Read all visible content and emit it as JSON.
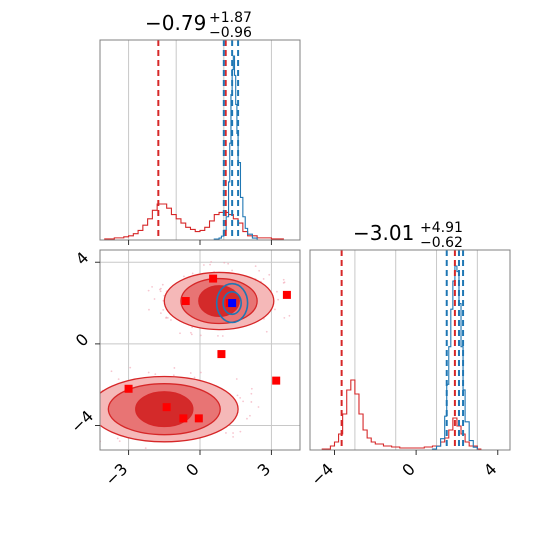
{
  "colors": {
    "red": "#d62728",
    "red_fill_dark": "#d42a2a",
    "red_fill_mid": "#e87474",
    "red_fill_light": "#f5b8b8",
    "blue": "#1f77b4",
    "marker_red": "#ff0000",
    "marker_blue": "#0000ff",
    "grid": "#c8c8c8"
  },
  "chart_data": [
    {
      "type": "histogram",
      "panel": "top-left",
      "title": {
        "main": "−0.79",
        "sup": "+1.87",
        "sub": "−0.96"
      },
      "xlim": [
        -4.2,
        4.2
      ],
      "grid": true,
      "quantile_lines": {
        "red": [
          -1.75,
          1.08
        ],
        "blue": [
          1.0,
          1.35,
          1.6
        ]
      },
      "series": [
        {
          "color": "red",
          "x": [
            -4.0,
            -3.6,
            -3.2,
            -3.0,
            -2.8,
            -2.6,
            -2.4,
            -2.2,
            -2.0,
            -1.8,
            -1.6,
            -1.4,
            -1.2,
            -1.0,
            -0.8,
            -0.6,
            -0.4,
            -0.2,
            0.0,
            0.2,
            0.4,
            0.6,
            0.8,
            1.0,
            1.2,
            1.4,
            1.6,
            1.8,
            2.0,
            2.4,
            3.0,
            3.5
          ],
          "y": [
            0.005,
            0.01,
            0.015,
            0.02,
            0.03,
            0.045,
            0.07,
            0.1,
            0.14,
            0.17,
            0.17,
            0.15,
            0.12,
            0.1,
            0.08,
            0.06,
            0.05,
            0.04,
            0.045,
            0.06,
            0.09,
            0.12,
            0.13,
            0.13,
            0.12,
            0.1,
            0.08,
            0.04,
            0.02,
            0.01,
            0.005,
            0.0
          ]
        },
        {
          "color": "blue",
          "x": [
            0.6,
            0.8,
            0.9,
            1.0,
            1.1,
            1.2,
            1.25,
            1.3,
            1.35,
            1.4,
            1.45,
            1.5,
            1.55,
            1.6,
            1.7,
            1.8,
            1.9,
            2.0,
            2.2,
            2.4
          ],
          "y": [
            0.005,
            0.01,
            0.02,
            0.05,
            0.12,
            0.3,
            0.5,
            0.75,
            0.88,
            0.95,
            0.85,
            0.7,
            0.55,
            0.4,
            0.22,
            0.12,
            0.06,
            0.03,
            0.01,
            0.0
          ]
        }
      ]
    },
    {
      "type": "contour",
      "panel": "bottom-left",
      "xlim": [
        -4.2,
        4.2
      ],
      "ylim": [
        -5.2,
        4.6
      ],
      "grid": true,
      "xticks": [
        "−3",
        "0",
        "3"
      ],
      "yticks": [
        "−4",
        "0",
        "4"
      ],
      "red_blobs": [
        {
          "cx": 0.8,
          "cy": 2.1,
          "rx": [
            2.3,
            1.6,
            0.85
          ],
          "ry": [
            1.4,
            1.1,
            0.75
          ]
        },
        {
          "cx": -1.5,
          "cy": -3.2,
          "rx": [
            3.1,
            2.35,
            1.2
          ],
          "ry": [
            1.6,
            1.25,
            0.85
          ]
        }
      ],
      "blue_contours": [
        {
          "cx": 1.35,
          "cy": 2.0,
          "rx": [
            0.65,
            0.38
          ],
          "ry": [
            0.95,
            0.55
          ]
        }
      ],
      "red_markers": [
        {
          "x": 0.55,
          "y": 3.2
        },
        {
          "x": -0.6,
          "y": 2.1
        },
        {
          "x": 1.25,
          "y": 2.0
        },
        {
          "x": 3.65,
          "y": 2.4
        },
        {
          "x": 0.9,
          "y": -0.5
        },
        {
          "x": 3.2,
          "y": -1.8
        },
        {
          "x": -3.0,
          "y": -2.2
        },
        {
          "x": -1.4,
          "y": -3.1
        },
        {
          "x": -0.7,
          "y": -3.65
        },
        {
          "x": -0.05,
          "y": -3.65
        }
      ],
      "blue_markers": [
        {
          "x": 1.35,
          "y": 2.0
        }
      ]
    },
    {
      "type": "histogram",
      "panel": "bottom-right",
      "title": {
        "main": "−3.01",
        "sup": "+4.91",
        "sub": "−0.62"
      },
      "xlim": [
        -5.2,
        4.6
      ],
      "grid": true,
      "xticks": [
        "−4",
        "0",
        "4"
      ],
      "quantile_lines": {
        "red": [
          -3.65,
          1.9
        ],
        "blue": [
          1.5,
          2.1,
          2.3
        ]
      },
      "series": [
        {
          "color": "red",
          "x": [
            -4.6,
            -4.2,
            -4.0,
            -3.8,
            -3.6,
            -3.4,
            -3.2,
            -3.0,
            -2.8,
            -2.6,
            -2.4,
            -2.2,
            -2.0,
            -1.6,
            -1.2,
            -0.8,
            -0.4,
            0.0,
            0.4,
            0.8,
            1.2,
            1.4,
            1.6,
            1.8,
            2.0,
            2.2,
            2.4,
            2.6,
            3.0
          ],
          "y": [
            0.005,
            0.02,
            0.04,
            0.08,
            0.18,
            0.3,
            0.35,
            0.28,
            0.18,
            0.1,
            0.06,
            0.04,
            0.03,
            0.02,
            0.015,
            0.01,
            0.01,
            0.01,
            0.015,
            0.02,
            0.04,
            0.06,
            0.1,
            0.16,
            0.12,
            0.08,
            0.04,
            0.02,
            0.005
          ]
        },
        {
          "color": "blue",
          "x": [
            0.8,
            1.0,
            1.2,
            1.4,
            1.5,
            1.6,
            1.7,
            1.8,
            1.9,
            2.0,
            2.1,
            2.2,
            2.3,
            2.4,
            2.6,
            2.8,
            3.0
          ],
          "y": [
            0.005,
            0.02,
            0.06,
            0.18,
            0.35,
            0.55,
            0.75,
            0.9,
            0.98,
            0.95,
            0.78,
            0.55,
            0.32,
            0.15,
            0.05,
            0.015,
            0.0
          ]
        }
      ]
    }
  ]
}
